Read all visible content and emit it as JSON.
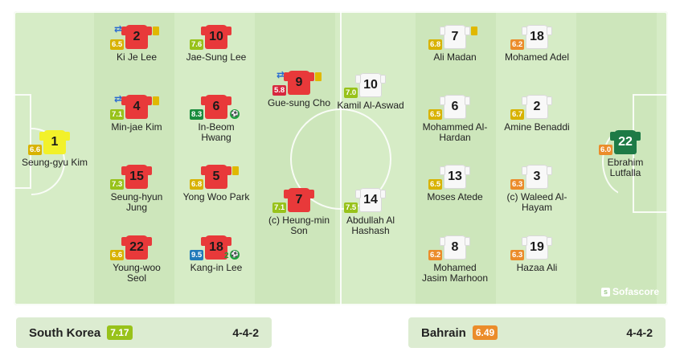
{
  "colors": {
    "rating_high": "#1a8c3e",
    "rating_good": "#98c21a",
    "rating_mid": "#d8b200",
    "rating_low": "#eb8c2b",
    "rating_bad": "#d7283e",
    "rating_top": "#217aba"
  },
  "brand": {
    "name": "Sofascore"
  },
  "home": {
    "name": "South Korea",
    "rating": "7.17",
    "formation": "4-4-2",
    "players": [
      {
        "number": "1",
        "name": "Seung-gyu Kim",
        "rating": "6.6",
        "jersey": "yellow"
      },
      {
        "number": "2",
        "name": "Ki Je Lee",
        "rating": "6.5",
        "jersey": "red",
        "sub": true,
        "card": true
      },
      {
        "number": "4",
        "name": "Min-jae Kim",
        "rating": "7.1",
        "jersey": "red",
        "sub": true,
        "card": true
      },
      {
        "number": "15",
        "name": "Seung-hyun Jung",
        "rating": "7.3",
        "jersey": "red"
      },
      {
        "number": "22",
        "name": "Young-woo Seol",
        "rating": "6.6",
        "jersey": "red"
      },
      {
        "number": "10",
        "name": "Jae-Sung Lee",
        "rating": "7.6",
        "jersey": "red"
      },
      {
        "number": "6",
        "name": "In-Beom Hwang",
        "rating": "8.3",
        "jersey": "red",
        "goal": true
      },
      {
        "number": "5",
        "name": "Yong Woo Park",
        "rating": "6.8",
        "jersey": "red",
        "card": true
      },
      {
        "number": "18",
        "name": "Kang-in Lee",
        "rating": "9.5",
        "jersey": "red",
        "goal": true,
        "goal_count": "2"
      },
      {
        "number": "9",
        "name": "Gue-sung Cho",
        "rating": "5.8",
        "jersey": "red",
        "sub": true,
        "card": true
      },
      {
        "number": "7",
        "name": "(c) Heung-min Son",
        "rating": "7.1",
        "jersey": "red"
      }
    ]
  },
  "away": {
    "name": "Bahrain",
    "rating": "6.49",
    "formation": "4-4-2",
    "players": [
      {
        "number": "10",
        "name": "Kamil Al-Aswad",
        "rating": "7.0",
        "jersey": "white"
      },
      {
        "number": "14",
        "name": "Abdullah Al Hashash",
        "rating": "7.5",
        "jersey": "white"
      },
      {
        "number": "7",
        "name": "Ali Madan",
        "rating": "6.8",
        "jersey": "white",
        "card": true
      },
      {
        "number": "6",
        "name": "Mohammed Al-Hardan",
        "rating": "6.5",
        "jersey": "white"
      },
      {
        "number": "13",
        "name": "Moses Atede",
        "rating": "6.5",
        "jersey": "white"
      },
      {
        "number": "8",
        "name": "Mohamed Jasim Marhoon",
        "rating": "6.2",
        "jersey": "white"
      },
      {
        "number": "18",
        "name": "Mohamed Adel",
        "rating": "6.2",
        "jersey": "white"
      },
      {
        "number": "2",
        "name": "Amine Benaddi",
        "rating": "6.7",
        "jersey": "white"
      },
      {
        "number": "3",
        "name": "(c) Waleed Al-Hayam",
        "rating": "6.3",
        "jersey": "white"
      },
      {
        "number": "19",
        "name": "Hazaa Ali",
        "rating": "6.3",
        "jersey": "white"
      },
      {
        "number": "22",
        "name": "Ebrahim Lutfalla",
        "rating": "6.0",
        "jersey": "green"
      }
    ]
  }
}
